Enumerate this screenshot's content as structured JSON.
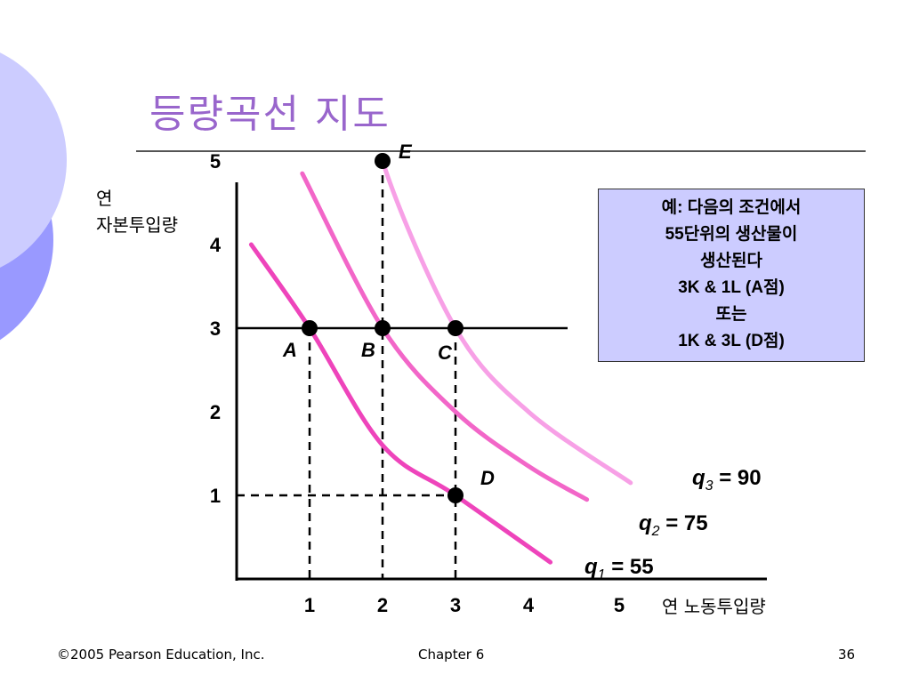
{
  "slide": {
    "title": "등량곡선 지도",
    "footer_left": "©2005 Pearson Education, Inc.",
    "footer_center": "Chapter 6",
    "footer_right": "36",
    "colors": {
      "title": "#9966cc",
      "deco_light": "#ccccff",
      "deco_dark": "#9999ff",
      "note_bg": "#ccccff"
    }
  },
  "note": {
    "lines": [
      "예:  다음의 조건에서",
      "55단위의 생산물이",
      "생산된다",
      "3K & 1L (A점)",
      "또는",
      "1K & 3L (D점)"
    ]
  },
  "chart_data": {
    "type": "line",
    "xlabel": "연 노동투입량",
    "ylabel_line1": "연",
    "ylabel_line2": "자본투입량",
    "x_ticks": [
      "1",
      "2",
      "3",
      "4",
      "5"
    ],
    "y_ticks": [
      "1",
      "2",
      "3",
      "4",
      "5"
    ],
    "xlim": [
      0,
      5.5
    ],
    "ylim": [
      0,
      5.5
    ],
    "series": [
      {
        "name": "q1 = 55",
        "q": "q",
        "sub": "1",
        "value": "55",
        "color": "#ee44bb",
        "x": [
          0.2,
          1,
          2,
          3,
          4.3
        ],
        "y": [
          4.0,
          3,
          1.6,
          1,
          0.2
        ]
      },
      {
        "name": "q2 = 75",
        "q": "q",
        "sub": "2",
        "value": "75",
        "color": "#f266c8",
        "x": [
          0.9,
          2,
          3,
          4,
          4.8
        ],
        "y": [
          4.85,
          3,
          2.0,
          1.35,
          0.95
        ]
      },
      {
        "name": "q3 = 90",
        "q": "q",
        "sub": "3",
        "value": "90",
        "color": "#f7a0e6",
        "x": [
          1.85,
          2,
          3,
          4,
          5.4
        ],
        "y": [
          6.15,
          5,
          3,
          2.0,
          1.15
        ]
      }
    ],
    "points": [
      {
        "label": "A",
        "x": 1,
        "y": 3
      },
      {
        "label": "B",
        "x": 2,
        "y": 3
      },
      {
        "label": "C",
        "x": 3,
        "y": 3
      },
      {
        "label": "D",
        "x": 3,
        "y": 1
      },
      {
        "label": "E",
        "x": 2,
        "y": 5
      }
    ],
    "horizontal_line_y": 3
  }
}
